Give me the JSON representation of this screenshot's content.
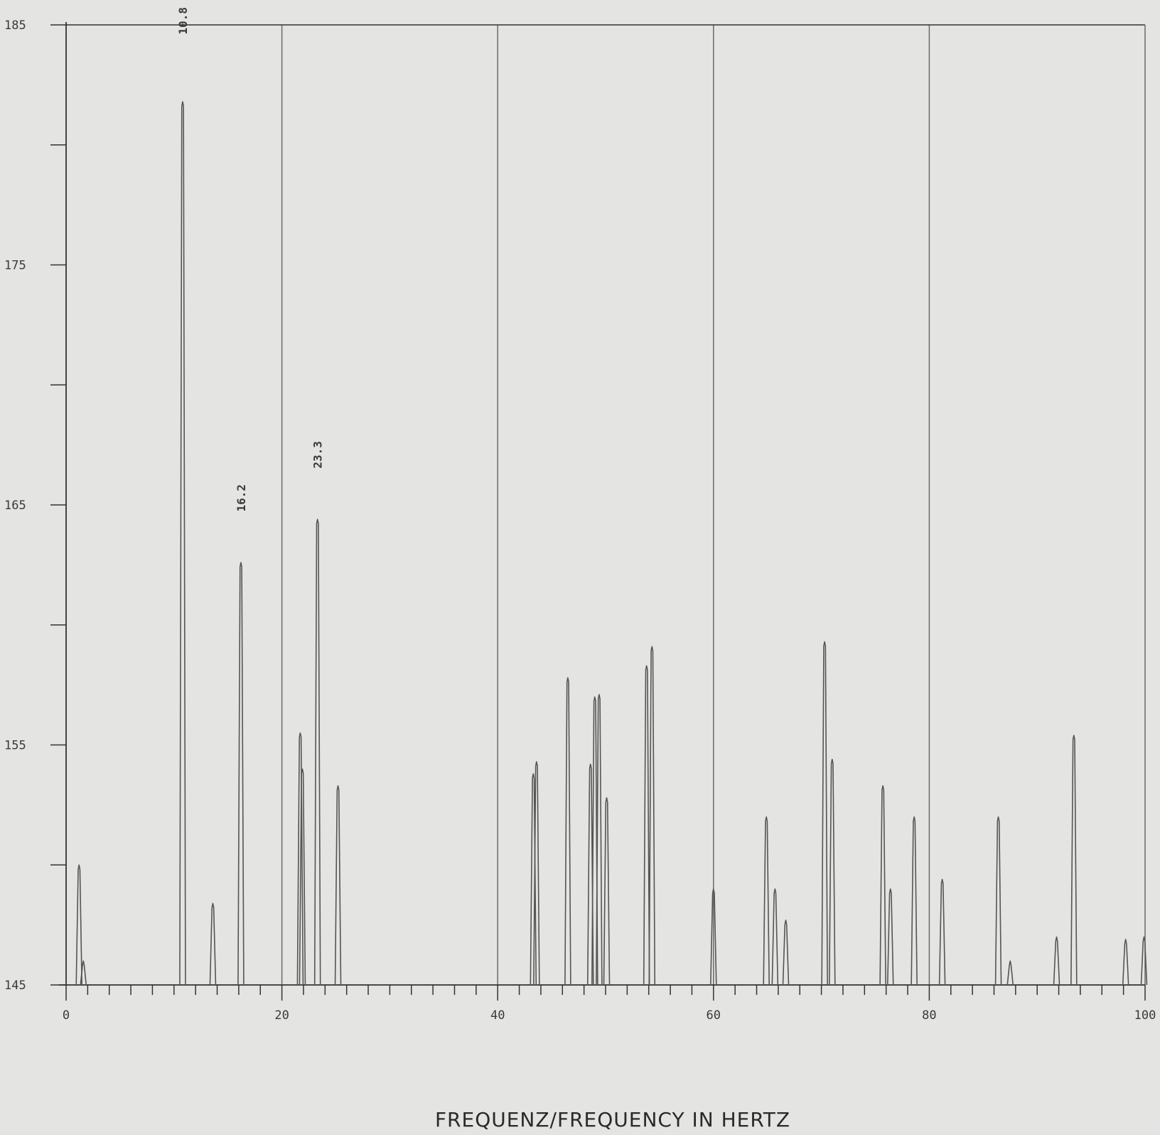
{
  "chart_data": {
    "type": "bar",
    "title": "",
    "xlabel": "FREQUENZ/FREQUENCY IN HERTZ",
    "ylabel": "",
    "xlim": [
      0,
      100
    ],
    "ylim": [
      145,
      185
    ],
    "x_ticks": [
      "0",
      "20",
      "40",
      "60",
      "80",
      "100"
    ],
    "y_ticks": [
      "145",
      "155",
      "165",
      "175",
      "185"
    ],
    "grid": "vertical at 20 Hz",
    "colors": {
      "line": "#555555",
      "axis": "#333333",
      "grid": "#6a6a6a",
      "background": "#e4e4e2"
    },
    "peak_labels": [
      {
        "x": 10.8,
        "text": "10.8"
      },
      {
        "x": 16.2,
        "text": "16.2"
      },
      {
        "x": 23.3,
        "text": "23.3"
      }
    ],
    "peaks": [
      {
        "x": 1.2,
        "y": 150.0
      },
      {
        "x": 1.6,
        "y": 146.0
      },
      {
        "x": 10.8,
        "y": 181.8
      },
      {
        "x": 13.6,
        "y": 148.4
      },
      {
        "x": 16.2,
        "y": 162.6
      },
      {
        "x": 21.7,
        "y": 155.5
      },
      {
        "x": 21.9,
        "y": 154.0
      },
      {
        "x": 23.3,
        "y": 164.4
      },
      {
        "x": 25.2,
        "y": 153.3
      },
      {
        "x": 43.3,
        "y": 153.8
      },
      {
        "x": 43.6,
        "y": 154.3
      },
      {
        "x": 46.5,
        "y": 157.8
      },
      {
        "x": 48.6,
        "y": 154.2
      },
      {
        "x": 49.0,
        "y": 157.0
      },
      {
        "x": 49.4,
        "y": 157.1
      },
      {
        "x": 50.1,
        "y": 152.8
      },
      {
        "x": 53.8,
        "y": 158.3
      },
      {
        "x": 54.3,
        "y": 159.1
      },
      {
        "x": 60.0,
        "y": 149.0
      },
      {
        "x": 64.9,
        "y": 152.0
      },
      {
        "x": 65.7,
        "y": 149.0
      },
      {
        "x": 66.7,
        "y": 147.7
      },
      {
        "x": 70.3,
        "y": 159.3
      },
      {
        "x": 71.0,
        "y": 154.4
      },
      {
        "x": 75.7,
        "y": 153.3
      },
      {
        "x": 76.4,
        "y": 149.0
      },
      {
        "x": 78.6,
        "y": 152.0
      },
      {
        "x": 81.2,
        "y": 149.4
      },
      {
        "x": 86.4,
        "y": 152.0
      },
      {
        "x": 87.5,
        "y": 146.0
      },
      {
        "x": 91.8,
        "y": 147.0
      },
      {
        "x": 93.4,
        "y": 155.4
      },
      {
        "x": 98.2,
        "y": 146.9
      },
      {
        "x": 99.9,
        "y": 147.0
      }
    ]
  }
}
